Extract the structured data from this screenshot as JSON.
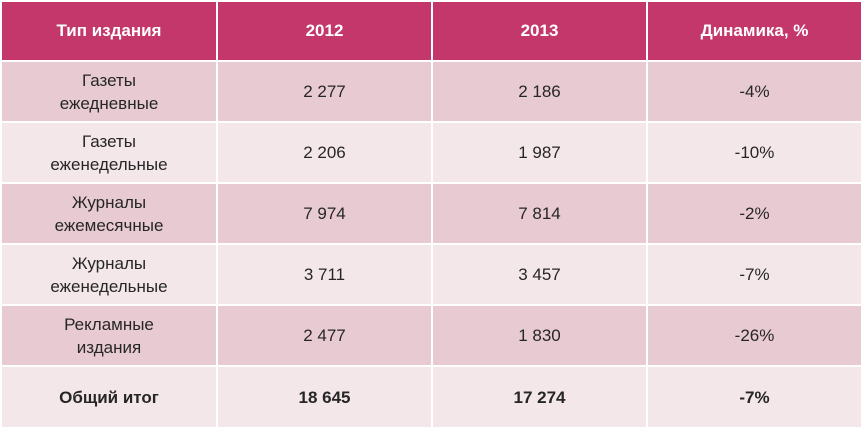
{
  "table": {
    "headers": [
      "Тип издания",
      "2012",
      "2013",
      "Динамика, %"
    ],
    "rows": [
      {
        "type_line1": "Газеты",
        "type_line2": "ежедневные",
        "y2012": "2 277",
        "y2013": "2 186",
        "change": "-4%"
      },
      {
        "type_line1": "Газеты",
        "type_line2": "еженедельные",
        "y2012": "2 206",
        "y2013": "1 987",
        "change": "-10%"
      },
      {
        "type_line1": "Журналы",
        "type_line2": "ежемесячные",
        "y2012": "7 974",
        "y2013": "7 814",
        "change": "-2%"
      },
      {
        "type_line1": "Журналы",
        "type_line2": "еженедельные",
        "y2012": "3 711",
        "y2013": "3 457",
        "change": "-7%"
      },
      {
        "type_line1": "Рекламные",
        "type_line2": "издания",
        "y2012": "2 477",
        "y2013": "1 830",
        "change": "-26%"
      }
    ],
    "total": {
      "label": "Общий итог",
      "y2012": "18 645",
      "y2013": "17 274",
      "change": "-7%"
    }
  },
  "colors": {
    "header_bg": "#c4376a",
    "row_dark": "#e8cbd2",
    "row_light": "#f4e7ea",
    "text": "#262626"
  }
}
